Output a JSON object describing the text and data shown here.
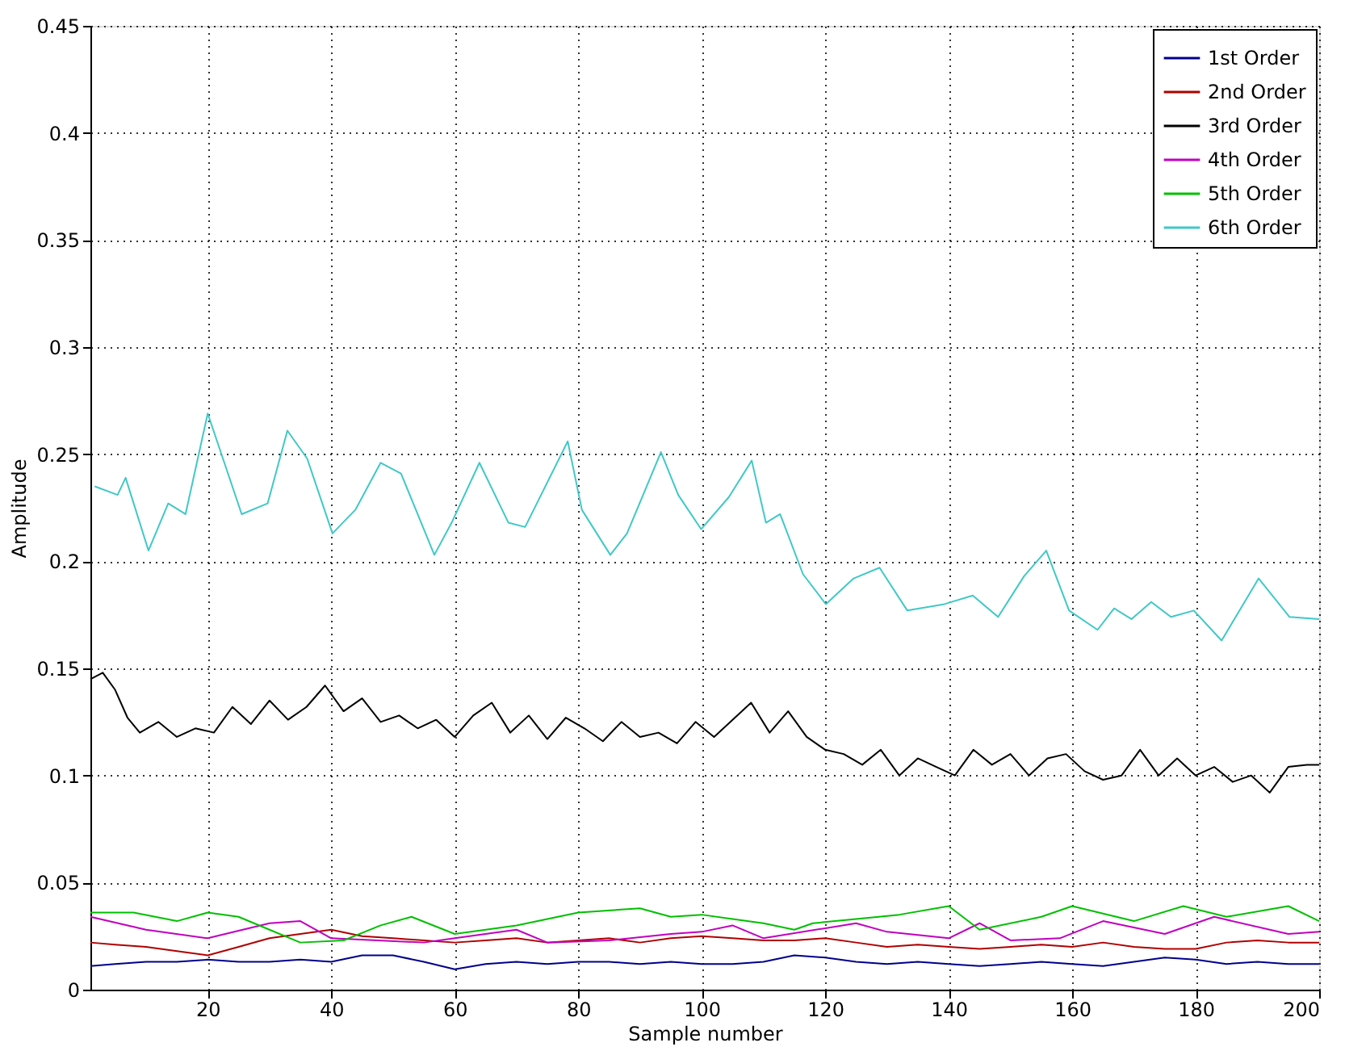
{
  "chart_data": {
    "type": "line",
    "xlabel": "Sample number",
    "ylabel": "Amplitude",
    "xlim": [
      1,
      200
    ],
    "xticks": [
      20,
      40,
      60,
      80,
      100,
      120,
      140,
      160,
      180,
      200
    ],
    "ylim": [
      0,
      0.45
    ],
    "yticks": [
      0,
      0.05,
      0.1,
      0.15,
      0.2,
      0.25,
      0.3,
      0.35,
      0.4,
      0.45
    ],
    "grid": true,
    "legend": "top right",
    "series": [
      {
        "name": "1st Order",
        "color": "#00008b",
        "x": [
          1,
          5,
          10,
          15,
          20,
          25,
          30,
          35,
          40,
          45,
          50,
          55,
          60,
          65,
          70,
          75,
          80,
          85,
          90,
          95,
          100,
          105,
          110,
          115,
          120,
          125,
          130,
          135,
          140,
          145,
          150,
          155,
          160,
          165,
          170,
          175,
          180,
          185,
          190,
          195,
          200
        ],
        "values": [
          0.011,
          0.012,
          0.013,
          0.013,
          0.014,
          0.013,
          0.013,
          0.014,
          0.013,
          0.016,
          0.016,
          0.013,
          0.0095,
          0.012,
          0.013,
          0.012,
          0.013,
          0.013,
          0.012,
          0.013,
          0.012,
          0.012,
          0.013,
          0.016,
          0.015,
          0.013,
          0.012,
          0.013,
          0.012,
          0.011,
          0.012,
          0.013,
          0.012,
          0.011,
          0.013,
          0.015,
          0.014,
          0.012,
          0.013,
          0.012,
          0.012
        ]
      },
      {
        "name": "2nd Order",
        "color": "#b00000",
        "x": [
          1,
          5,
          10,
          15,
          20,
          25,
          30,
          35,
          40,
          45,
          50,
          55,
          60,
          65,
          70,
          75,
          80,
          85,
          90,
          95,
          100,
          105,
          110,
          115,
          120,
          125,
          130,
          135,
          140,
          145,
          150,
          155,
          160,
          165,
          170,
          175,
          180,
          185,
          190,
          195,
          200
        ],
        "values": [
          0.022,
          0.021,
          0.02,
          0.018,
          0.016,
          0.02,
          0.024,
          0.026,
          0.028,
          0.025,
          0.024,
          0.023,
          0.022,
          0.023,
          0.024,
          0.022,
          0.023,
          0.024,
          0.022,
          0.024,
          0.025,
          0.024,
          0.023,
          0.023,
          0.024,
          0.022,
          0.02,
          0.021,
          0.02,
          0.019,
          0.02,
          0.021,
          0.02,
          0.022,
          0.02,
          0.019,
          0.019,
          0.022,
          0.023,
          0.022,
          0.022
        ]
      },
      {
        "name": "3rd Order",
        "color": "#000000",
        "x": [
          1,
          3,
          5,
          7,
          9,
          12,
          15,
          18,
          21,
          24,
          27,
          30,
          33,
          36,
          39,
          42,
          45,
          48,
          51,
          54,
          57,
          60,
          63,
          66,
          69,
          72,
          75,
          78,
          81,
          84,
          87,
          90,
          93,
          96,
          99,
          102,
          105,
          108,
          111,
          114,
          117,
          120,
          123,
          126,
          129,
          132,
          135,
          138,
          141,
          144,
          147,
          150,
          153,
          156,
          159,
          162,
          165,
          168,
          171,
          174,
          177,
          180,
          183,
          186,
          189,
          192,
          195,
          198,
          200
        ],
        "values": [
          0.145,
          0.148,
          0.14,
          0.127,
          0.12,
          0.125,
          0.118,
          0.122,
          0.12,
          0.132,
          0.124,
          0.135,
          0.126,
          0.132,
          0.142,
          0.13,
          0.136,
          0.125,
          0.128,
          0.122,
          0.126,
          0.118,
          0.128,
          0.134,
          0.12,
          0.128,
          0.117,
          0.127,
          0.122,
          0.116,
          0.125,
          0.118,
          0.12,
          0.115,
          0.125,
          0.118,
          0.126,
          0.134,
          0.12,
          0.13,
          0.118,
          0.112,
          0.11,
          0.105,
          0.112,
          0.1,
          0.108,
          0.104,
          0.1,
          0.112,
          0.105,
          0.11,
          0.1,
          0.108,
          0.11,
          0.102,
          0.098,
          0.1,
          0.112,
          0.1,
          0.108,
          0.1,
          0.104,
          0.097,
          0.1,
          0.092,
          0.104,
          0.105,
          0.105
        ]
      },
      {
        "name": "4th Order",
        "color": "#c000c0",
        "x": [
          1,
          10,
          20,
          30,
          35,
          40,
          55,
          60,
          70,
          75,
          85,
          95,
          100,
          105,
          110,
          125,
          130,
          140,
          145,
          150,
          158,
          165,
          175,
          183,
          195,
          200
        ],
        "values": [
          0.034,
          0.028,
          0.024,
          0.031,
          0.032,
          0.024,
          0.022,
          0.024,
          0.028,
          0.022,
          0.023,
          0.026,
          0.027,
          0.03,
          0.024,
          0.031,
          0.027,
          0.024,
          0.031,
          0.023,
          0.024,
          0.032,
          0.026,
          0.034,
          0.026,
          0.027
        ]
      },
      {
        "name": "5th Order",
        "color": "#00c000",
        "x": [
          1,
          8,
          15,
          20,
          25,
          30,
          35,
          42,
          48,
          53,
          60,
          70,
          80,
          90,
          95,
          100,
          105,
          110,
          115,
          118,
          125,
          132,
          140,
          145,
          155,
          160,
          170,
          178,
          185,
          195,
          200
        ],
        "values": [
          0.036,
          0.036,
          0.032,
          0.036,
          0.034,
          0.028,
          0.022,
          0.023,
          0.03,
          0.034,
          0.026,
          0.03,
          0.036,
          0.038,
          0.034,
          0.035,
          0.033,
          0.031,
          0.028,
          0.031,
          0.033,
          0.035,
          0.039,
          0.028,
          0.034,
          0.039,
          0.032,
          0.039,
          0.034,
          0.039,
          0.032
        ]
      },
      {
        "name": "6th Order",
        "color": "#40c8c8",
        "x": [
          1.7,
          5.4,
          6.7,
          10.4,
          13.6,
          16.4,
          20,
          25.5,
          29.7,
          32.9,
          36.1,
          40.2,
          43.9,
          48,
          51.3,
          56.7,
          59.5,
          64,
          68.7,
          71.4,
          78.3,
          80.6,
          85.2,
          87.9,
          93.4,
          96.2,
          99.9,
          104.4,
          108.1,
          110.4,
          112.7,
          116.4,
          120.1,
          124.6,
          128.8,
          133.3,
          139.3,
          143.9,
          148,
          152.2,
          155.8,
          159.5,
          164.1,
          166.8,
          169.6,
          172.8,
          176,
          179.7,
          184.2,
          190.2,
          195.2,
          200
        ],
        "values": [
          0.235,
          0.231,
          0.239,
          0.205,
          0.227,
          0.222,
          0.269,
          0.222,
          0.227,
          0.261,
          0.248,
          0.213,
          0.224,
          0.246,
          0.241,
          0.203,
          0.218,
          0.246,
          0.218,
          0.216,
          0.256,
          0.224,
          0.203,
          0.213,
          0.251,
          0.231,
          0.215,
          0.23,
          0.247,
          0.218,
          0.222,
          0.194,
          0.18,
          0.192,
          0.197,
          0.177,
          0.18,
          0.184,
          0.174,
          0.193,
          0.205,
          0.177,
          0.168,
          0.178,
          0.173,
          0.181,
          0.174,
          0.177,
          0.163,
          0.192,
          0.174,
          0.173
        ]
      }
    ]
  }
}
